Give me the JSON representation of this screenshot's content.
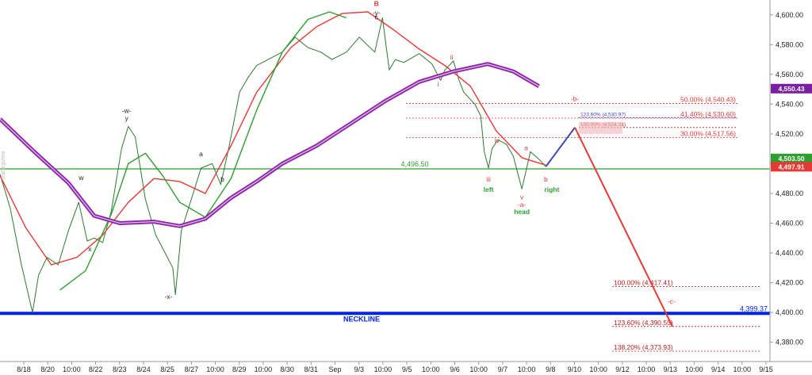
{
  "chart_data": {
    "type": "line",
    "title": "",
    "xlabel": "",
    "ylabel": "",
    "ylim": [
      4367,
      4610
    ],
    "y_ticks": [
      "4,600.00",
      "4,580.00",
      "4,560.00",
      "4,540.00",
      "4,520.00",
      "4,500.00",
      "4,480.00",
      "4,460.00",
      "4,440.00",
      "4,420.00",
      "4,400.00",
      "4,380.00"
    ],
    "y_tick_values": [
      4600,
      4580,
      4560,
      4540,
      4520,
      4500,
      4480,
      4460,
      4440,
      4420,
      4400,
      4380
    ],
    "x_ticks": [
      "8/18",
      "8/20",
      "10:00",
      "8/22",
      "8/23",
      "8/24",
      "8/25",
      "8/27",
      "10:00",
      "8/29",
      "10:00",
      "8/30",
      "8/31",
      "Sep",
      "9/3",
      "10:00",
      "9/5",
      "10:00",
      "9/6",
      "10:00",
      "9/7",
      "10:00",
      "9/8",
      "9/10",
      "10:00",
      "9/12",
      "10:00",
      "9/13",
      "10:00",
      "9/14",
      "10:00",
      "9/15"
    ],
    "watermark": "tradingview",
    "price_tags": [
      {
        "label": "4,550.43",
        "value": 4550.43,
        "color": "#7b1fa2"
      },
      {
        "label": "4,503.50",
        "value": 4503.5,
        "color": "#2e9e2e"
      },
      {
        "label": "4,497.91",
        "value": 4497.91,
        "color": "#e53935"
      }
    ],
    "horizontal_lines": [
      {
        "name": "neckline",
        "label": "NECKLINE",
        "value": 4399.37,
        "value_label": "4,399.37",
        "color": "#0022ee"
      },
      {
        "name": "green-level",
        "label": "4,496.50",
        "value": 4496.5,
        "color": "#2e9e2e"
      }
    ],
    "fib_levels": [
      {
        "label": "50.00% (4,540.43)",
        "value": 4540.43,
        "color": "#e53935"
      },
      {
        "label": "41.40% (4,530.60)",
        "value": 4530.6,
        "color": "#e53935"
      },
      {
        "label": "30.00% (4,517.56)",
        "value": 4517.56,
        "color": "#e53935"
      },
      {
        "label": "123.60% (4,530.97)",
        "value": 4530.97,
        "color": "#3b3bd6"
      },
      {
        "label": "100.00% (4,524.31)",
        "value": 4524.31,
        "color": "#b71c1c"
      },
      {
        "label": "100.00% (4,417.41)",
        "value": 4417.41,
        "color": "#b71c1c"
      },
      {
        "label": "123.60% (4,390.55)",
        "value": 4390.55,
        "color": "#b71c1c"
      },
      {
        "label": "138.20% (4,373.93)",
        "value": 4373.93,
        "color": "#b71c1c"
      }
    ],
    "wave_labels": [
      {
        "text": "B",
        "x": 4.4,
        "y": 4606,
        "color": "#e53935"
      },
      {
        "text": "-y-",
        "x": 4.4,
        "y": 4600,
        "color": "#222"
      },
      {
        "text": "c",
        "x": 4.4,
        "y": 4597,
        "color": "#222"
      },
      {
        "text": "-w-",
        "x": 1.48,
        "y": 4534,
        "color": "#222"
      },
      {
        "text": "y",
        "x": 1.48,
        "y": 4529,
        "color": "#222"
      },
      {
        "text": "w",
        "x": 0.95,
        "y": 4489,
        "color": "#222"
      },
      {
        "text": "x",
        "x": 1.05,
        "y": 4441,
        "color": "#222"
      },
      {
        "text": "-x-",
        "x": 1.97,
        "y": 4409,
        "color": "#222"
      },
      {
        "text": "a",
        "x": 2.35,
        "y": 4505,
        "color": "#222"
      },
      {
        "text": "b",
        "x": 2.6,
        "y": 4488,
        "color": "#222"
      },
      {
        "text": "i",
        "x": 5.12,
        "y": 4552,
        "color": "#e53935"
      },
      {
        "text": "ii",
        "x": 5.28,
        "y": 4570,
        "color": "#e53935"
      },
      {
        "text": "iii",
        "x": 5.71,
        "y": 4488,
        "color": "#e53935"
      },
      {
        "text": "iv",
        "x": 5.81,
        "y": 4514,
        "color": "#e53935"
      },
      {
        "text": "a",
        "x": 6.15,
        "y": 4509,
        "color": "#e53935"
      },
      {
        "text": "v",
        "x": 6.1,
        "y": 4476,
        "color": "#e53935"
      },
      {
        "text": "-a-",
        "x": 6.1,
        "y": 4471,
        "color": "#e53935"
      },
      {
        "text": "b",
        "x": 6.38,
        "y": 4488,
        "color": "#e53935"
      },
      {
        "text": "-b-",
        "x": 6.72,
        "y": 4542,
        "color": "#e53935"
      },
      {
        "text": "-c-",
        "x": 7.85,
        "y": 4406,
        "color": "#e53935"
      },
      {
        "text": "left",
        "x": 5.71,
        "y": 4481,
        "color": "#2e9e2e"
      },
      {
        "text": "head",
        "x": 6.1,
        "y": 4466,
        "color": "#2e9e2e"
      },
      {
        "text": "right",
        "x": 6.45,
        "y": 4481,
        "color": "#2e9e2e"
      }
    ],
    "series": [
      {
        "name": "price",
        "color": "#2d7a2d",
        "points": [
          [
            0,
            4493
          ],
          [
            0.12,
            4470
          ],
          [
            0.25,
            4432
          ],
          [
            0.38,
            4400
          ],
          [
            0.45,
            4425
          ],
          [
            0.55,
            4437
          ],
          [
            0.68,
            4432
          ],
          [
            0.8,
            4455
          ],
          [
            0.92,
            4474
          ],
          [
            1.02,
            4448
          ],
          [
            1.1,
            4450
          ],
          [
            1.2,
            4447
          ],
          [
            1.3,
            4468
          ],
          [
            1.42,
            4510
          ],
          [
            1.5,
            4525
          ],
          [
            1.58,
            4518
          ],
          [
            1.7,
            4476
          ],
          [
            1.82,
            4452
          ],
          [
            1.93,
            4440
          ],
          [
            2.02,
            4430
          ],
          [
            2.05,
            4412
          ],
          [
            2.12,
            4455
          ],
          [
            2.28,
            4484
          ],
          [
            2.35,
            4497
          ],
          [
            2.48,
            4500
          ],
          [
            2.58,
            4486
          ],
          [
            2.68,
            4512
          ],
          [
            2.8,
            4548
          ],
          [
            2.9,
            4558
          ],
          [
            3.0,
            4566
          ],
          [
            3.1,
            4569
          ],
          [
            3.3,
            4575
          ],
          [
            3.45,
            4585
          ],
          [
            3.6,
            4578
          ],
          [
            3.75,
            4575
          ],
          [
            3.88,
            4570
          ],
          [
            4.05,
            4575
          ],
          [
            4.2,
            4585
          ],
          [
            4.38,
            4575
          ],
          [
            4.47,
            4598
          ],
          [
            4.55,
            4563
          ],
          [
            4.62,
            4570
          ],
          [
            4.72,
            4568
          ],
          [
            4.9,
            4574
          ],
          [
            5.05,
            4567
          ],
          [
            5.15,
            4556
          ],
          [
            5.2,
            4563
          ],
          [
            5.3,
            4569
          ],
          [
            5.36,
            4557
          ],
          [
            5.42,
            4548
          ],
          [
            5.55,
            4540
          ],
          [
            5.62,
            4532
          ],
          [
            5.66,
            4508
          ],
          [
            5.71,
            4497
          ],
          [
            5.75,
            4510
          ],
          [
            5.82,
            4516
          ],
          [
            5.92,
            4513
          ],
          [
            6.0,
            4505
          ],
          [
            6.1,
            4483
          ],
          [
            6.2,
            4508
          ],
          [
            6.3,
            4503
          ],
          [
            6.38,
            4498
          ]
        ]
      },
      {
        "name": "red-ma",
        "color": "#e53935",
        "points": [
          [
            0,
            4492
          ],
          [
            0.3,
            4457
          ],
          [
            0.6,
            4432
          ],
          [
            0.9,
            4437
          ],
          [
            1.2,
            4452
          ],
          [
            1.5,
            4474
          ],
          [
            1.8,
            4490
          ],
          [
            2.1,
            4488
          ],
          [
            2.4,
            4480
          ],
          [
            2.7,
            4512
          ],
          [
            3.0,
            4548
          ],
          [
            3.4,
            4578
          ],
          [
            3.7,
            4592
          ],
          [
            4.0,
            4601
          ],
          [
            4.3,
            4602
          ],
          [
            4.6,
            4590
          ],
          [
            4.9,
            4577
          ],
          [
            5.2,
            4566
          ],
          [
            5.5,
            4552
          ],
          [
            5.8,
            4522
          ],
          [
            6.1,
            4504
          ],
          [
            6.38,
            4499
          ]
        ]
      },
      {
        "name": "green-ma",
        "color": "#2e9e2e",
        "points": [
          [
            0.7,
            4415
          ],
          [
            1.0,
            4428
          ],
          [
            1.3,
            4466
          ],
          [
            1.5,
            4500
          ],
          [
            1.7,
            4507
          ],
          [
            1.9,
            4492
          ],
          [
            2.1,
            4474
          ],
          [
            2.4,
            4464
          ],
          [
            2.7,
            4490
          ],
          [
            3.0,
            4536
          ],
          [
            3.3,
            4575
          ],
          [
            3.6,
            4597
          ],
          [
            3.85,
            4602
          ],
          [
            4.05,
            4598
          ]
        ]
      },
      {
        "name": "purple-ma",
        "color": "#8e24aa",
        "points": [
          [
            0,
            4530
          ],
          [
            0.4,
            4508
          ],
          [
            0.8,
            4487
          ],
          [
            1.1,
            4465
          ],
          [
            1.4,
            4460
          ],
          [
            1.8,
            4461
          ],
          [
            2.1,
            4458
          ],
          [
            2.4,
            4463
          ],
          [
            2.7,
            4477
          ],
          [
            3.0,
            4488
          ],
          [
            3.3,
            4500
          ],
          [
            3.7,
            4512
          ],
          [
            4.1,
            4527
          ],
          [
            4.5,
            4542
          ],
          [
            4.9,
            4555
          ],
          [
            5.3,
            4562
          ],
          [
            5.7,
            4567
          ],
          [
            6.0,
            4562
          ],
          [
            6.3,
            4552
          ]
        ]
      }
    ],
    "projection": [
      {
        "name": "blue-projection",
        "color": "#3949ab",
        "points": [
          [
            6.38,
            4498
          ],
          [
            6.72,
            4524.31
          ]
        ]
      },
      {
        "name": "red-projection",
        "color": "#e53935",
        "points": [
          [
            6.72,
            4524.31
          ],
          [
            7.86,
            4390.55
          ]
        ]
      }
    ]
  }
}
